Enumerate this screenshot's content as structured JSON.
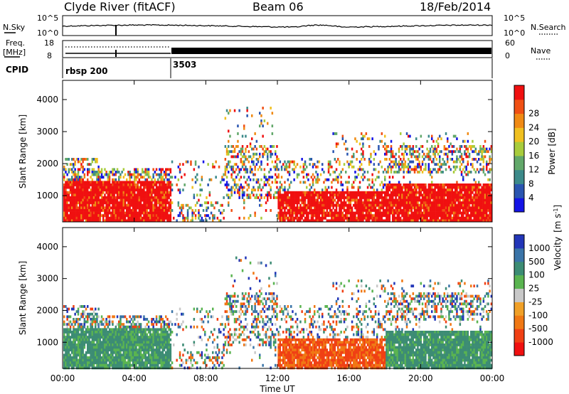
{
  "header": {
    "station": "Clyde River (fitACF)",
    "beam": "Beam 06",
    "date": "18/Feb/2014"
  },
  "chart_data": [
    {
      "type": "line",
      "name": "noise-panel",
      "left_label": "N.Sky",
      "left_ticks": [
        "10^5",
        "10^0"
      ],
      "right_label": "N.Search",
      "right_ticks": [
        "10^5",
        "10^0"
      ]
    },
    {
      "type": "line",
      "name": "frequency-panel",
      "left_label_1": "Freq.",
      "left_label_2": "[MHz]",
      "left_ticks": [
        "18",
        "8"
      ],
      "right_label": "Nave",
      "right_ticks": [
        "60",
        "0"
      ]
    },
    {
      "type": "table",
      "name": "cpid-panel",
      "label": "CPID",
      "segments": [
        {
          "name": "rbsp 200",
          "start_hour": 0
        },
        {
          "name": "3503",
          "start_hour": 6
        }
      ]
    },
    {
      "type": "heatmap",
      "name": "power",
      "ylabel": "Slant Range [km]",
      "yticks": [
        1000,
        2000,
        3000,
        4000
      ],
      "ylim": [
        180,
        4600
      ],
      "colorbar_label": "Power [dB]",
      "colorbar_ticks": [
        4,
        8,
        12,
        16,
        20,
        24,
        28
      ],
      "colors": [
        "#1414e6",
        "#2a55b0",
        "#3c8a8a",
        "#62a86a",
        "#a8cc3c",
        "#f0c020",
        "#f08a14",
        "#f05014",
        "#f01010"
      ]
    },
    {
      "type": "heatmap",
      "name": "velocity",
      "ylabel": "Slant Range [km]",
      "yticks": [
        1000,
        2000,
        3000,
        4000
      ],
      "ylim": [
        180,
        4600
      ],
      "colorbar_label": "Velocity",
      "colorbar_unit": "[m s",
      "colorbar_unit_exp": "-1",
      "colorbar_unit_end": "]",
      "colorbar_ticks": [
        "1000",
        "500",
        "100",
        "25",
        "-25",
        "-100",
        "-500",
        "-1000"
      ],
      "colors": [
        "#2236b8",
        "#3a74a8",
        "#3c8c74",
        "#5ab450",
        "#c8c8c8",
        "#f0a028",
        "#f07814",
        "#f04014",
        "#f01010"
      ]
    }
  ],
  "xaxis": {
    "label": "Time UT",
    "ticks": [
      "00:00",
      "04:00",
      "08:00",
      "12:00",
      "16:00",
      "20:00",
      "00:00"
    ],
    "xlim": [
      0,
      24
    ]
  }
}
